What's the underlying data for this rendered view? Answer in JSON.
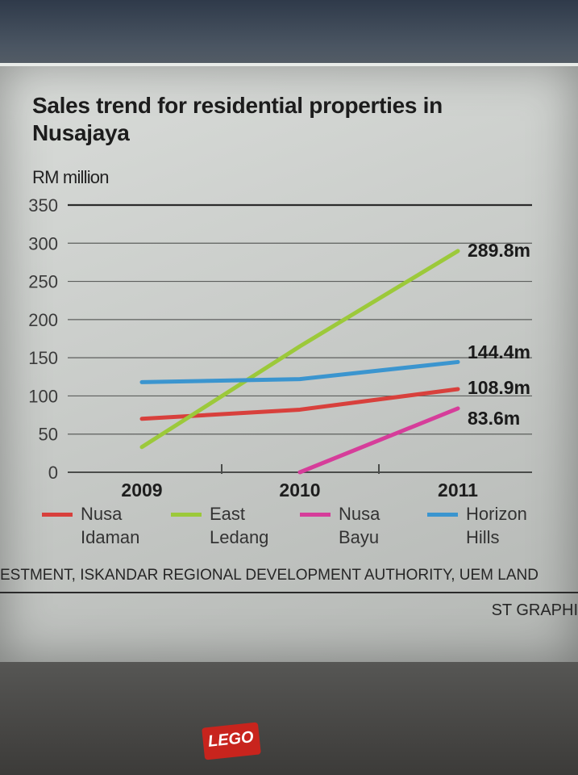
{
  "chart_data": {
    "type": "line",
    "title": "Sales trend for residential properties in Nusajaya",
    "ylabel": "RM million",
    "xlabel": "",
    "x": [
      "2009",
      "2010",
      "2011"
    ],
    "ylim": [
      0,
      350
    ],
    "yticks": [
      0,
      50,
      100,
      150,
      200,
      250,
      300,
      350
    ],
    "grid": true,
    "legend_position": "bottom",
    "series": [
      {
        "name": "Nusa Idaman",
        "color": "#d8403c",
        "values": [
          70,
          82,
          108.9
        ],
        "end_label": "108.9m"
      },
      {
        "name": "East Ledang",
        "color": "#9cc93a",
        "values": [
          33,
          165,
          289.8
        ],
        "end_label": "289.8m"
      },
      {
        "name": "Nusa Bayu",
        "color": "#d63d9a",
        "values": [
          null,
          0,
          83.6
        ],
        "end_label": "83.6m"
      },
      {
        "name": "Horizon Hills",
        "color": "#3b95cf",
        "values": [
          118,
          122,
          144.4
        ],
        "end_label": "144.4m"
      }
    ]
  },
  "legend": [
    {
      "line1": "Nusa",
      "line2": "Idaman"
    },
    {
      "line1": "East",
      "line2": "Ledang"
    },
    {
      "line1": "Nusa",
      "line2": "Bayu"
    },
    {
      "line1": "Horizon",
      "line2": "Hills"
    }
  ],
  "source_text": "ESTMENT, ISKANDAR REGIONAL DEVELOPMENT AUTHORITY, UEM LAND",
  "credit_text": "ST GRAPHI",
  "logo_text": "LEGO"
}
